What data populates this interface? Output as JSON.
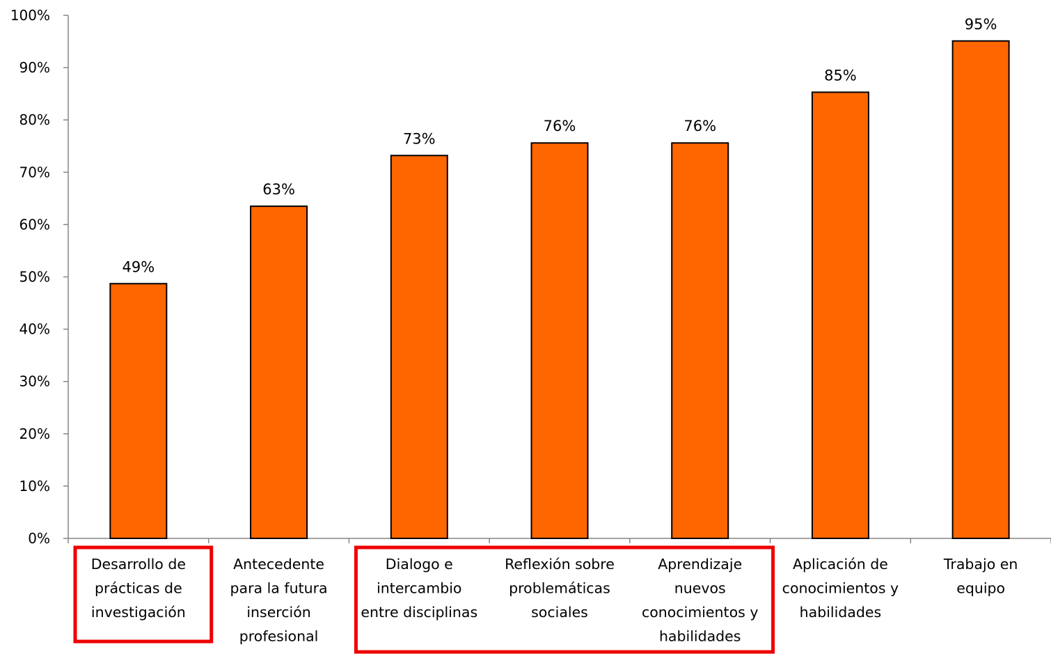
{
  "chart_data": {
    "type": "bar",
    "title": "",
    "xlabel": "",
    "ylabel": "",
    "ylim": [
      0,
      100
    ],
    "y_ticks": [
      "0%",
      "10%",
      "20%",
      "30%",
      "40%",
      "50%",
      "60%",
      "70%",
      "80%",
      "90%",
      "100%"
    ],
    "grid": false,
    "legend": "none",
    "bar_color": "#FF6600",
    "highlight_color": "#EE0000",
    "categories": [
      "Desarrollo de prácticas de investigación",
      "Antecedente para la futura inserción profesional",
      "Dialogo e intercambio entre disciplinas",
      "Reflexión sobre problemáticas sociales",
      "Aprendizaje nuevos conocimientos y habilidades",
      "Aplicación de conocimientos y habilidades",
      "Trabajo en equipo"
    ],
    "category_lines": [
      [
        "Desarrollo de",
        "prácticas de",
        "investigación"
      ],
      [
        "Antecedente",
        "para la futura",
        "inserción",
        "profesional"
      ],
      [
        "Dialogo e",
        "intercambio",
        "entre disciplinas"
      ],
      [
        "Reflexión sobre",
        "problemáticas",
        "sociales"
      ],
      [
        "Aprendizaje",
        "nuevos",
        "conocimientos y",
        "habilidades"
      ],
      [
        "Aplicación de",
        "conocimientos y",
        "habilidades"
      ],
      [
        "Trabajo en",
        "equipo"
      ]
    ],
    "values": [
      48.7,
      63.5,
      73.2,
      75.6,
      75.6,
      85.3,
      95.1
    ],
    "data_labels": [
      "49%",
      "63%",
      "73%",
      "76%",
      "76%",
      "85%",
      "95%"
    ],
    "highlighted_groups": [
      [
        0
      ],
      [
        2,
        3,
        4
      ]
    ]
  }
}
